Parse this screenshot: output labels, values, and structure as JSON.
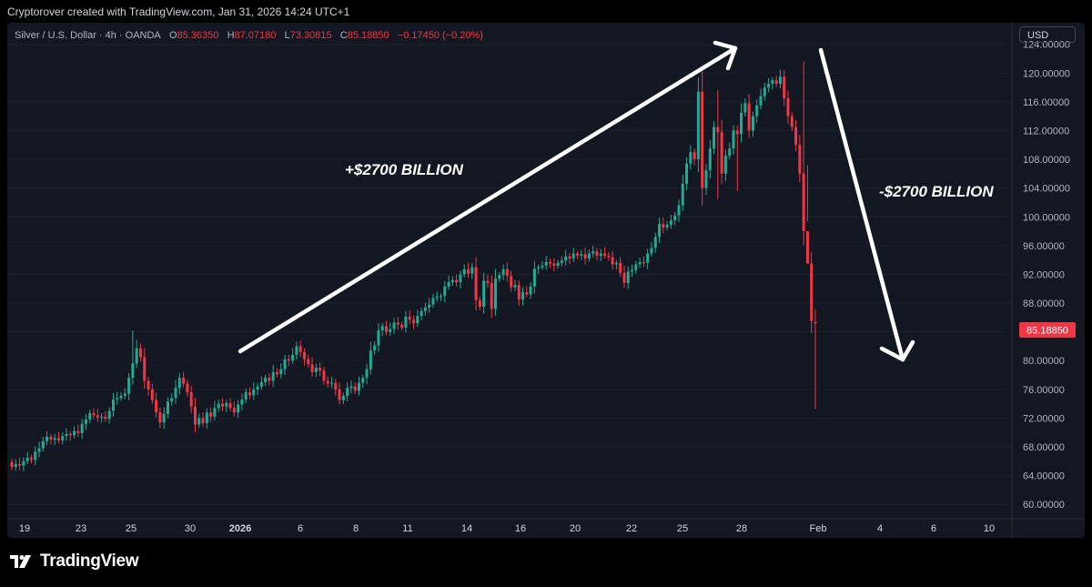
{
  "header": {
    "credit": "Cryptorover created with TradingView.com, Jan 31, 2026 14:24 UTC+1"
  },
  "legend": {
    "symbol": "Silver / U.S. Dollar · 4h · OANDA",
    "open_label": "O",
    "open": "85.36350",
    "high_label": "H",
    "high": "87.07180",
    "low_label": "L",
    "low": "73.30815",
    "close_label": "C",
    "close": "85.18850",
    "change": "−0.17450 (−0.20%)"
  },
  "currency_button": "USD",
  "annotations": {
    "up_text": "+$2700 BILLION",
    "down_text": "-$2700 BILLION"
  },
  "last_price_label": "85.18850",
  "footer": {
    "brand": "TradingView"
  },
  "colors": {
    "up": "#26a69a",
    "up_candle": "#22ab94",
    "down": "#f23645",
    "background": "#131722",
    "text": "#d1d4dc"
  },
  "chart_data": {
    "type": "candlestick",
    "ylim": [
      58,
      127
    ],
    "y_ticks": [
      "124.00000",
      "120.00000",
      "116.00000",
      "112.00000",
      "108.00000",
      "104.00000",
      "100.00000",
      "96.00000",
      "92.00000",
      "88.00000",
      "84.00000",
      "80.00000",
      "76.00000",
      "72.00000",
      "68.00000",
      "64.00000",
      "60.00000"
    ],
    "x_ticks": [
      "19",
      "23",
      "25",
      "30",
      "2026",
      "6",
      "8",
      "11",
      "14",
      "16",
      "20",
      "22",
      "25",
      "28",
      "Feb",
      "4",
      "6",
      "10"
    ],
    "last_price": 85.1885,
    "closes": [
      65.2,
      65.6,
      65.4,
      66.0,
      66.5,
      66.2,
      67.3,
      67.8,
      68.8,
      69.4,
      69.0,
      69.2,
      68.9,
      69.5,
      69.8,
      69.6,
      70.2,
      69.9,
      71.2,
      71.8,
      72.7,
      72.4,
      72.1,
      72.2,
      71.9,
      73.0,
      74.6,
      74.8,
      75.1,
      75.4,
      77.6,
      79.6,
      81.7,
      80.5,
      77.2,
      76.0,
      74.5,
      72.8,
      71.4,
      72.6,
      74.3,
      74.8,
      76.2,
      77.6,
      76.8,
      75.6,
      73.6,
      71.1,
      72.0,
      71.3,
      72.8,
      72.2,
      73.4,
      74.0,
      73.6,
      74.1,
      73.4,
      72.8,
      73.9,
      74.6,
      75.6,
      75.2,
      76.0,
      76.4,
      77.0,
      77.6,
      77.2,
      78.4,
      78.1,
      78.8,
      80.2,
      80.0,
      80.8,
      82.0,
      81.2,
      80.2,
      79.5,
      78.4,
      79.0,
      78.6,
      77.2,
      76.8,
      76.9,
      76.0,
      74.5,
      75.1,
      76.2,
      76.4,
      75.8,
      76.9,
      77.6,
      78.8,
      81.4,
      82.1,
      84.2,
      84.8,
      84.0,
      84.4,
      85.3,
      85.0,
      84.6,
      86.1,
      85.7,
      85.2,
      86.2,
      86.9,
      87.4,
      87.8,
      88.7,
      88.9,
      89.0,
      90.3,
      90.9,
      91.2,
      90.9,
      92.0,
      92.7,
      92.1,
      93.0,
      88.4,
      87.5,
      91.1,
      90.8,
      87.2,
      91.4,
      91.9,
      92.7,
      91.8,
      90.2,
      90.5,
      88.5,
      89.5,
      89.2,
      90.3,
      92.8,
      93.0,
      93.2,
      93.7,
      93.5,
      93.2,
      93.6,
      93.9,
      94.5,
      94.2,
      94.9,
      94.6,
      94.8,
      94.2,
      94.9,
      95.2,
      94.6,
      94.9,
      94.6,
      94.4,
      93.4,
      93.6,
      92.2,
      90.8,
      92.4,
      92.6,
      93.4,
      93.7,
      93.6,
      94.9,
      95.7,
      97.2,
      99.0,
      98.5,
      98.9,
      99.5,
      100.2,
      101.6,
      104.6,
      107.4,
      109.0,
      108.0,
      117.4,
      104.0,
      106.5,
      109.5,
      112.5,
      111.8,
      106.0,
      108.5,
      109.5,
      112.0,
      111.5,
      114.5,
      115.8,
      112.0,
      114.0,
      115.5,
      116.8,
      118.0,
      118.5,
      119.0,
      118.5,
      119.5,
      116.5,
      114.0,
      112.5,
      110.0,
      106.0,
      98.0,
      93.5,
      85.5,
      85.2
    ]
  }
}
